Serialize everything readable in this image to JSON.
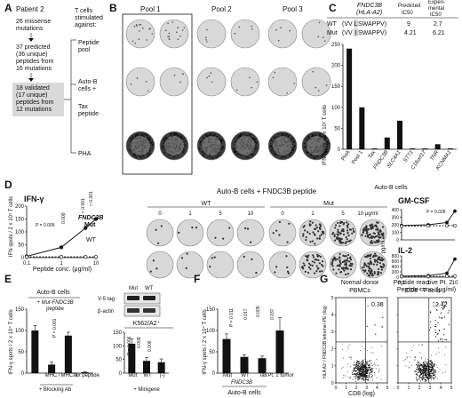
{
  "panels": {
    "A": "A",
    "B": "B",
    "C": "C",
    "D": "D",
    "E": "E",
    "F": "F",
    "G": "G"
  },
  "panelA": {
    "patient": "Patient 2",
    "box1": [
      "26 missense",
      "mutations"
    ],
    "box2": [
      "37 predicted",
      "(36 unique)",
      "peptides from",
      "16 mutations"
    ],
    "box3": [
      "18 validated",
      "(17 unique)",
      "peptides from",
      "12 mutations"
    ],
    "stim_title": [
      "T cells",
      "stimulated",
      "against:"
    ],
    "stim_peptide": [
      "Peptide",
      "pool"
    ],
    "stim_auto": [
      "Auto-B",
      "cells +"
    ],
    "stim_tax": [
      "Tax",
      "peptide"
    ],
    "stim_pha": "PHA"
  },
  "panelB": {
    "pools": [
      "Pool 1",
      "Pool 2",
      "Pool 3"
    ]
  },
  "panelC": {
    "gene": "FNDC3B",
    "hla": "(HLA-A2)",
    "col_pred": [
      "Predicted",
      "IC50"
    ],
    "col_exp": [
      "Experi-",
      "mental",
      "IC50"
    ],
    "rows": [
      {
        "label": "WT",
        "seq_pre": "(VV",
        "seq_box": "L",
        "seq_post": "SWAPPV)",
        "pred": "9",
        "exp": "2.7"
      },
      {
        "label": "Mut",
        "seq_pre": "(VV",
        "seq_box": "I",
        "seq_post": "SWAPPV)",
        "pred": "4.21",
        "exp": "6.21"
      }
    ],
    "ylabel": "IFN spots / 2 x 10⁵ T cells",
    "xlabel": "Auto-B cells",
    "chart_data": {
      "type": "bar",
      "categories": [
        "PHA",
        "Pool 1",
        "Tax",
        "FNDC3B",
        "SLC4A1",
        "STT1",
        "C16orf17",
        "TNR",
        "KCNMA1"
      ],
      "values": [
        240,
        100,
        2,
        28,
        68,
        2,
        2,
        12,
        2
      ],
      "ylim": [
        0,
        250
      ],
      "yticks": [
        "0",
        "50",
        "100",
        "150",
        "200",
        "250"
      ],
      "italic_categories": [
        "FNDC3B",
        "SLC4A1",
        "STT1",
        "C16orf17",
        "TNR",
        "KCNMA1"
      ]
    }
  },
  "panelD": {
    "ifn_title": "IFN-γ",
    "ylabel": "IFN spots / 2 x 10⁵ T cells",
    "xlabel": "Peptide conc. (μg/ml)",
    "legend_mut": [
      "FNDC3B",
      "Mut"
    ],
    "legend_wt": "WT",
    "pvals": [
      "P = 0.009",
      "0.009",
      "< 0.001",
      "< 0.001"
    ],
    "chart_data": {
      "type": "line",
      "x": [
        "0.1",
        "1",
        "5",
        "10"
      ],
      "xticks": [
        "0.1",
        "1",
        "10"
      ],
      "yticks": [
        "0",
        "50",
        "100",
        "150",
        "200"
      ],
      "ylim": [
        0,
        200
      ],
      "series": [
        {
          "name": "FNDC3B Mut",
          "values": [
            5,
            40,
            115,
            150
          ]
        },
        {
          "name": "WT",
          "values": [
            3,
            3,
            3,
            3
          ]
        }
      ]
    },
    "wells_title": "Auto-B cells + FNDC3B peptide",
    "wt_label": "WT",
    "mut_label": "Mut",
    "conc": [
      "0",
      "1",
      "5",
      "10",
      "0",
      "1",
      "5",
      "10 μg/ml"
    ],
    "gmcsf": {
      "title": "GM-CSF",
      "p": "P = 0.028",
      "yticks": [
        "0",
        "100",
        "200",
        "300",
        "400"
      ],
      "ylabel": "pg/ml",
      "chart_data": {
        "type": "line",
        "x": [
          "0.1",
          "1",
          "5",
          "10"
        ],
        "series": [
          {
            "name": "Mut",
            "values": [
              190,
              200,
              230,
              380
            ]
          },
          {
            "name": "WT",
            "values": [
              180,
              185,
              190,
              190
            ]
          }
        ],
        "ylim": [
          0,
          400
        ]
      }
    },
    "il2": {
      "title": "IL-2",
      "yticks": [
        "0",
        "200",
        "400",
        "600",
        "800"
      ],
      "xlabel": "Peptide conc. (μg/ml)",
      "xticks": [
        "0.1",
        "1",
        "10"
      ],
      "chart_data": {
        "type": "line",
        "x": [
          "0.1",
          "1",
          "5",
          "10"
        ],
        "series": [
          {
            "name": "Mut",
            "values": [
              40,
              60,
              150,
              680
            ]
          },
          {
            "name": "WT",
            "values": [
              30,
              30,
              35,
              40
            ]
          }
        ],
        "ylim": [
          0,
          800
        ]
      }
    }
  },
  "panelE": {
    "title": "Auto-B cells",
    "sub": [
      "+ Mut-FNDC3B",
      "peptide"
    ],
    "ylabel": "IFN-γ spots / 2 x 10⁴ T cells",
    "blocking": "+ Blocking Ab",
    "pvals": [
      "P = 0.001",
      "P = 0.006",
      "0.009",
      "0.006"
    ],
    "chart_data": [
      {
        "type": "bar",
        "categories": [
          "",
          "MHC I",
          "MHC II",
          "Tax peptide"
        ],
        "values": [
          100,
          20,
          88,
          2
        ],
        "errors": [
          12,
          6,
          8,
          1
        ],
        "ylim": [
          0,
          150
        ],
        "yticks": [
          "0",
          "50",
          "100",
          "150"
        ]
      },
      {
        "type": "bar",
        "categories": [
          "Mut",
          "WT",
          "(-)"
        ],
        "values": [
          108,
          45,
          40
        ],
        "errors": [
          18,
          12,
          12
        ],
        "ylim": [
          0,
          150
        ],
        "yticks": [
          "0",
          "50",
          "100",
          "150"
        ]
      }
    ],
    "blot_cols": [
      "Mut",
      "WT"
    ],
    "blot_rows": [
      "V-5 tag",
      "β-actin"
    ],
    "k562": "K562/A2⁺",
    "minigene": "+ Minigene"
  },
  "panelF": {
    "ylabel": "IFN-γ spots / 2 x 10⁴ T cells",
    "xgroup": "Auto-B cells",
    "xgroup2": "FNDC3B",
    "pvals": [
      "P = 0.011",
      "0.017",
      "0.005",
      "0.037"
    ],
    "chart_data": {
      "type": "bar",
      "categories": [
        "Mut",
        "WT",
        "Tax",
        "Pt. 2 tumor"
      ],
      "values": [
        80,
        38,
        35,
        100
      ],
      "errors": [
        12,
        5,
        5,
        30
      ],
      "ylim": [
        0,
        150
      ],
      "yticks": [
        "0",
        "50",
        "100",
        "150"
      ]
    }
  },
  "panelG": {
    "left_title": [
      "Normal donor",
      "PBMCs"
    ],
    "right_title": [
      "Peptide reactive Pt. 2",
      "CD8⁺ T cells"
    ],
    "left_pct": "0.38",
    "right_pct": "2.42",
    "ylabel": "HLA A2⁺/ FNDC3B tetramer-PE (log)",
    "xlabel": "CD8 (log)",
    "yticks": [
      "0",
      "1",
      "2",
      "3",
      "4",
      "5"
    ],
    "xticks": [
      "0",
      "1",
      "2",
      "3",
      "4",
      "5"
    ]
  }
}
